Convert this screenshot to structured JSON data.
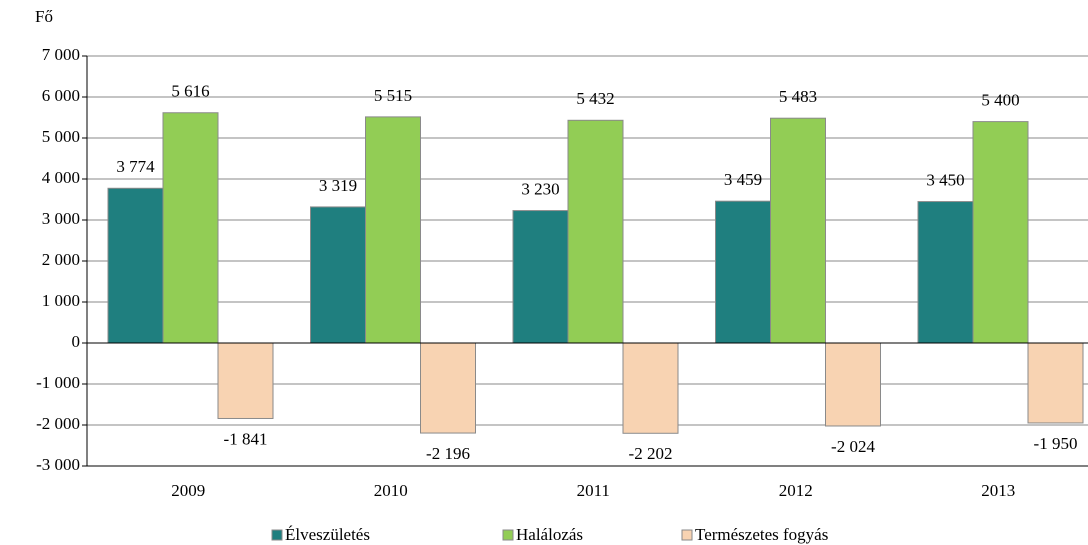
{
  "chart_data": {
    "type": "bar",
    "y_label": "Fő",
    "categories": [
      "2009",
      "2010",
      "2011",
      "2012",
      "2013"
    ],
    "series": [
      {
        "name": "Élveszületés",
        "color": "#1f7f7f",
        "values": [
          3774,
          3319,
          3230,
          3459,
          3450
        ],
        "value_labels": [
          "3 774",
          "3 319",
          "3 230",
          "3 459",
          "3 450"
        ]
      },
      {
        "name": "Halálozás",
        "color": "#92cd55",
        "values": [
          5616,
          5515,
          5432,
          5483,
          5400
        ],
        "value_labels": [
          "5 616",
          "5 515",
          "5 432",
          "5 483",
          "5 400"
        ]
      },
      {
        "name": "Természetes fogyás",
        "color": "#f8d3b2",
        "values": [
          -1841,
          -2196,
          -2202,
          -2024,
          -1950
        ],
        "value_labels": [
          "-1 841",
          "-2 196",
          "-2 202",
          "-2 024",
          "-1 950"
        ]
      }
    ],
    "ylim": [
      -3000,
      7000
    ],
    "yticks": [
      {
        "value": -3000,
        "label": "-3 000"
      },
      {
        "value": -2000,
        "label": "-2 000"
      },
      {
        "value": -1000,
        "label": "-1 000"
      },
      0,
      {
        "value": 1000,
        "label": "1 000"
      },
      {
        "value": 2000,
        "label": "2 000"
      },
      {
        "value": 3000,
        "label": "3 000"
      },
      {
        "value": 4000,
        "label": "4 000"
      },
      {
        "value": 5000,
        "label": "5 000"
      },
      {
        "value": 6000,
        "label": "6 000"
      },
      {
        "value": 7000,
        "label": "7 000"
      }
    ],
    "grid": true,
    "legend": "bottom"
  }
}
